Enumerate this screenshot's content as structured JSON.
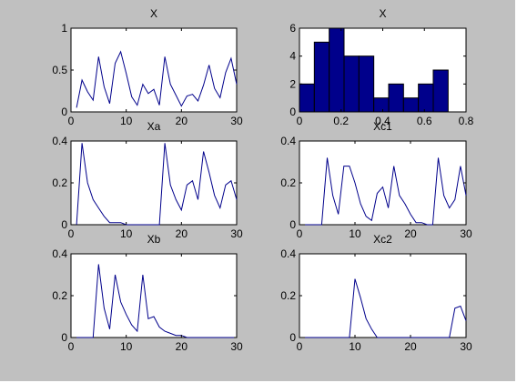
{
  "chart_data": [
    {
      "type": "line",
      "title": "X",
      "xlim": [
        0,
        30
      ],
      "ylim": [
        0,
        1
      ],
      "xticks": [
        0,
        10,
        20,
        30
      ],
      "yticks": [
        0,
        0.5,
        1
      ],
      "xtick_labels": [
        "0",
        "10",
        "20",
        "30"
      ],
      "ytick_labels": [
        "0",
        "0.5",
        "1"
      ],
      "color": "#00008b",
      "x": [
        1,
        2,
        3,
        4,
        5,
        6,
        7,
        8,
        9,
        10,
        11,
        12,
        13,
        14,
        15,
        16,
        17,
        18,
        19,
        20,
        21,
        22,
        23,
        24,
        25,
        26,
        27,
        28,
        29,
        30
      ],
      "values": [
        0.05,
        0.38,
        0.24,
        0.14,
        0.66,
        0.3,
        0.1,
        0.58,
        0.72,
        0.46,
        0.18,
        0.08,
        0.33,
        0.22,
        0.27,
        0.08,
        0.66,
        0.33,
        0.2,
        0.07,
        0.19,
        0.21,
        0.13,
        0.32,
        0.56,
        0.28,
        0.17,
        0.47,
        0.64,
        0.33
      ]
    },
    {
      "type": "bar",
      "title": "X",
      "xlim": [
        0,
        0.8
      ],
      "ylim": [
        0,
        6
      ],
      "xticks": [
        0,
        0.2,
        0.4,
        0.6,
        0.8
      ],
      "yticks": [
        0,
        2,
        4,
        6
      ],
      "xtick_labels": [
        "0",
        "0.2",
        "0.4",
        "0.6",
        "0.8"
      ],
      "ytick_labels": [
        "0",
        "2",
        "4",
        "6"
      ],
      "color": "#00008b",
      "bin_edges": [
        0.0,
        0.0714,
        0.1428,
        0.2142,
        0.2856,
        0.357,
        0.4284,
        0.4998,
        0.5712,
        0.6426,
        0.714
      ],
      "values": [
        2,
        5,
        6,
        4,
        4,
        1,
        2,
        1,
        2,
        3
      ]
    },
    {
      "type": "line",
      "title": "Xa",
      "xlim": [
        0,
        30
      ],
      "ylim": [
        0,
        0.4
      ],
      "xticks": [
        0,
        10,
        20,
        30
      ],
      "yticks": [
        0,
        0.2,
        0.4
      ],
      "xtick_labels": [
        "0",
        "10",
        "20",
        "30"
      ],
      "ytick_labels": [
        "0",
        "0.2",
        "0.4"
      ],
      "color": "#00008b",
      "x": [
        1,
        2,
        3,
        4,
        5,
        6,
        7,
        8,
        9,
        10,
        11,
        12,
        13,
        14,
        15,
        16,
        17,
        18,
        19,
        20,
        21,
        22,
        23,
        24,
        25,
        26,
        27,
        28,
        29,
        30
      ],
      "values": [
        0,
        0.39,
        0.2,
        0.12,
        0.08,
        0.04,
        0.01,
        0.01,
        0.01,
        0,
        0,
        0,
        0,
        0,
        0,
        0,
        0.39,
        0.19,
        0.12,
        0.07,
        0.19,
        0.21,
        0.12,
        0.35,
        0.25,
        0.14,
        0.08,
        0.19,
        0.21,
        0.12
      ]
    },
    {
      "type": "line",
      "title": "Xc1",
      "xlim": [
        0,
        30
      ],
      "ylim": [
        0,
        0.4
      ],
      "xticks": [
        0,
        10,
        20,
        30
      ],
      "yticks": [
        0,
        0.2,
        0.4
      ],
      "xtick_labels": [
        "0",
        "10",
        "20",
        "30"
      ],
      "ytick_labels": [
        "0",
        "0.2",
        "0.4"
      ],
      "color": "#00008b",
      "x": [
        1,
        2,
        3,
        4,
        5,
        6,
        7,
        8,
        9,
        10,
        11,
        12,
        13,
        14,
        15,
        16,
        17,
        18,
        19,
        20,
        21,
        22,
        23,
        24,
        25,
        26,
        27,
        28,
        29,
        30
      ],
      "values": [
        0,
        0,
        0,
        0,
        0.32,
        0.14,
        0.05,
        0.28,
        0.28,
        0.2,
        0.1,
        0.04,
        0.02,
        0.15,
        0.18,
        0.08,
        0.28,
        0.14,
        0.1,
        0.05,
        0.01,
        0.01,
        0,
        0,
        0.32,
        0.14,
        0.08,
        0.12,
        0.28,
        0.14
      ]
    },
    {
      "type": "line",
      "title": "Xb",
      "xlim": [
        0,
        30
      ],
      "ylim": [
        0,
        0.4
      ],
      "xticks": [
        0,
        10,
        20,
        30
      ],
      "yticks": [
        0,
        0.2,
        0.4
      ],
      "xtick_labels": [
        "0",
        "10",
        "20",
        "30"
      ],
      "ytick_labels": [
        "0",
        "0.2",
        "0.4"
      ],
      "color": "#00008b",
      "x": [
        1,
        2,
        3,
        4,
        5,
        6,
        7,
        8,
        9,
        10,
        11,
        12,
        13,
        14,
        15,
        16,
        17,
        18,
        19,
        20,
        21,
        22,
        23,
        24,
        25,
        26,
        27,
        28,
        29,
        30
      ],
      "values": [
        0,
        0,
        0,
        0,
        0.35,
        0.14,
        0.04,
        0.3,
        0.17,
        0.11,
        0.06,
        0.03,
        0.3,
        0.09,
        0.1,
        0.05,
        0.03,
        0.02,
        0.01,
        0.01,
        0,
        0,
        0,
        0,
        0,
        0,
        0,
        0,
        0,
        0
      ]
    },
    {
      "type": "line",
      "title": "Xc2",
      "xlim": [
        0,
        30
      ],
      "ylim": [
        0,
        0.4
      ],
      "xticks": [
        0,
        10,
        20,
        30
      ],
      "yticks": [
        0,
        0.2,
        0.4
      ],
      "xtick_labels": [
        "0",
        "10",
        "20",
        "30"
      ],
      "ytick_labels": [
        "0",
        "0.2",
        "0.4"
      ],
      "color": "#00008b",
      "x": [
        1,
        2,
        3,
        4,
        5,
        6,
        7,
        8,
        9,
        10,
        11,
        12,
        13,
        14,
        15,
        16,
        17,
        18,
        19,
        20,
        21,
        22,
        23,
        24,
        25,
        26,
        27,
        28,
        29,
        30
      ],
      "values": [
        0,
        0,
        0,
        0,
        0,
        0,
        0,
        0,
        0,
        0.28,
        0.19,
        0.09,
        0.04,
        0,
        0,
        0,
        0,
        0,
        0,
        0,
        0,
        0,
        0,
        0,
        0,
        0,
        0,
        0.14,
        0.15,
        0.08
      ]
    }
  ]
}
